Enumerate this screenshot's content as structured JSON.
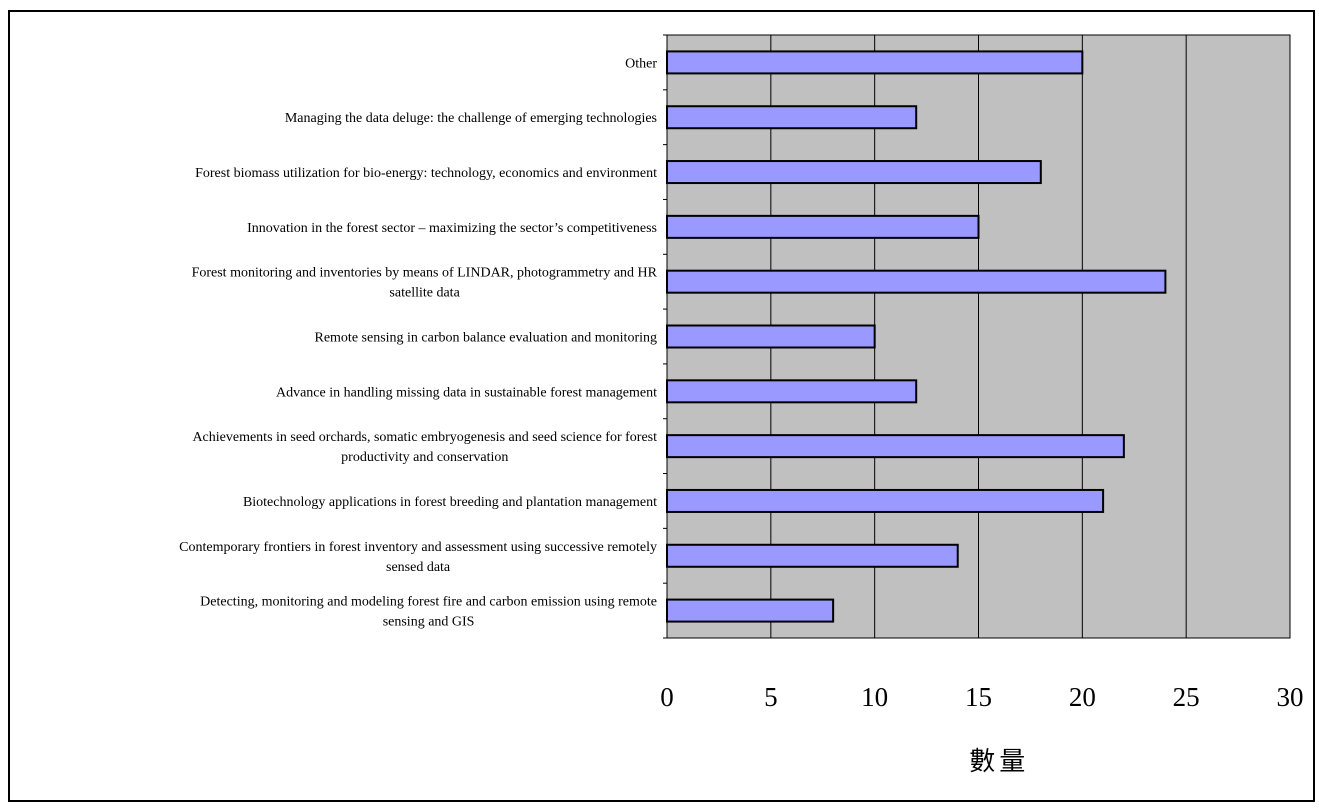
{
  "chart_data": {
    "type": "bar",
    "orientation": "horizontal",
    "title": "",
    "xlabel": "數量",
    "ylabel": "",
    "xlim": [
      0,
      30
    ],
    "xticks": [
      "0",
      "5",
      "10",
      "15",
      "20",
      "25",
      "30"
    ],
    "grid": true,
    "plot_background": "#c0c0c0",
    "bar_color": "#9999ff",
    "categories": [
      "Other",
      "Managing the data deluge: the challenge of emerging technologies",
      "Forest biomass utilization for bio-energy: technology, economics and environment",
      "Innovation in the forest sector – maximizing the sector’s competitiveness",
      "Forest monitoring and inventories by means of LINDAR, photogrammetry and HR satellite data",
      "Remote sensing in carbon balance evaluation and monitoring",
      "Advance in handling missing data in sustainable forest management",
      "Achievements in seed orchards, somatic embryogenesis and seed science for forest productivity and conservation",
      "Biotechnology applications in forest breeding and plantation management",
      "Contemporary frontiers in forest inventory and assessment using successive remotely sensed data",
      "Detecting, monitoring and modeling forest fire and carbon emission using remote sensing and GIS"
    ],
    "category_lines": [
      [
        "Other"
      ],
      [
        "Managing the data deluge: the challenge of emerging technologies"
      ],
      [
        "Forest biomass utilization for bio-energy: technology, economics and environment"
      ],
      [
        "Innovation in the forest sector – maximizing the sector’s competitiveness"
      ],
      [
        "Forest monitoring and inventories by means of LINDAR, photogrammetry and HR",
        "satellite data"
      ],
      [
        "Remote sensing in carbon balance evaluation and monitoring"
      ],
      [
        "Advance in handling missing data in sustainable forest management"
      ],
      [
        "Achievements in seed orchards, somatic embryogenesis and seed science for forest",
        "productivity and conservation"
      ],
      [
        "Biotechnology applications in forest breeding and plantation management"
      ],
      [
        "Contemporary frontiers in forest inventory and assessment using successive remotely",
        "sensed data"
      ],
      [
        "Detecting, monitoring and modeling forest fire and carbon emission using remote",
        "sensing and GIS"
      ]
    ],
    "values": [
      20,
      12,
      18,
      15,
      24,
      10,
      12,
      22,
      21,
      14,
      8
    ]
  }
}
